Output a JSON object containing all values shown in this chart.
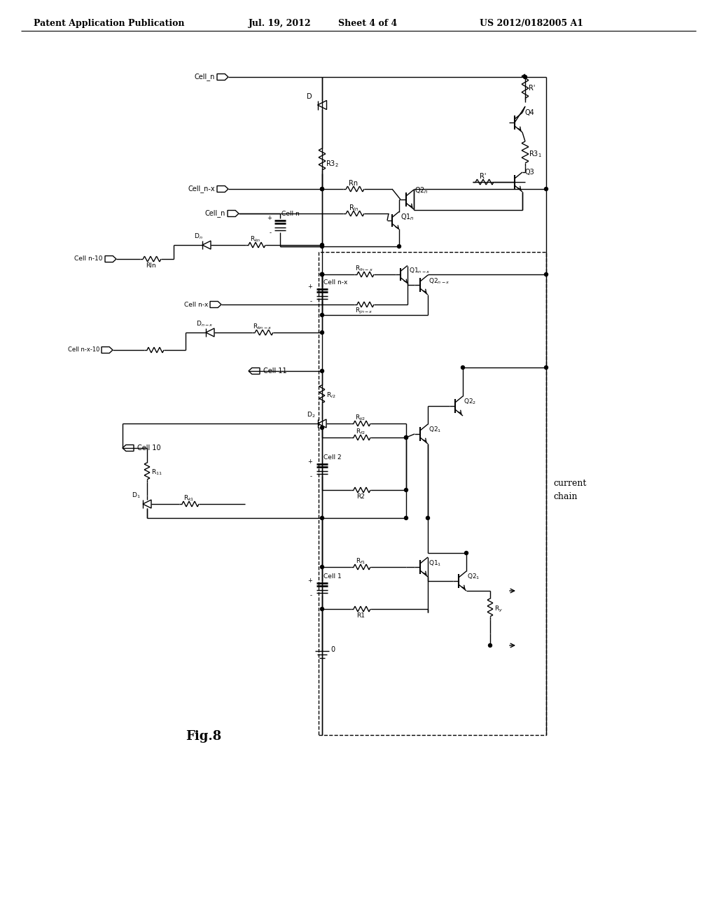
{
  "header_left": "Patent Application Publication",
  "header_mid1": "Jul. 19, 2012",
  "header_mid2": "Sheet 4 of 4",
  "header_right": "US 2012/0182005 A1",
  "fig_label": "Fig.8",
  "bg": "#ffffff",
  "lc": "#000000"
}
